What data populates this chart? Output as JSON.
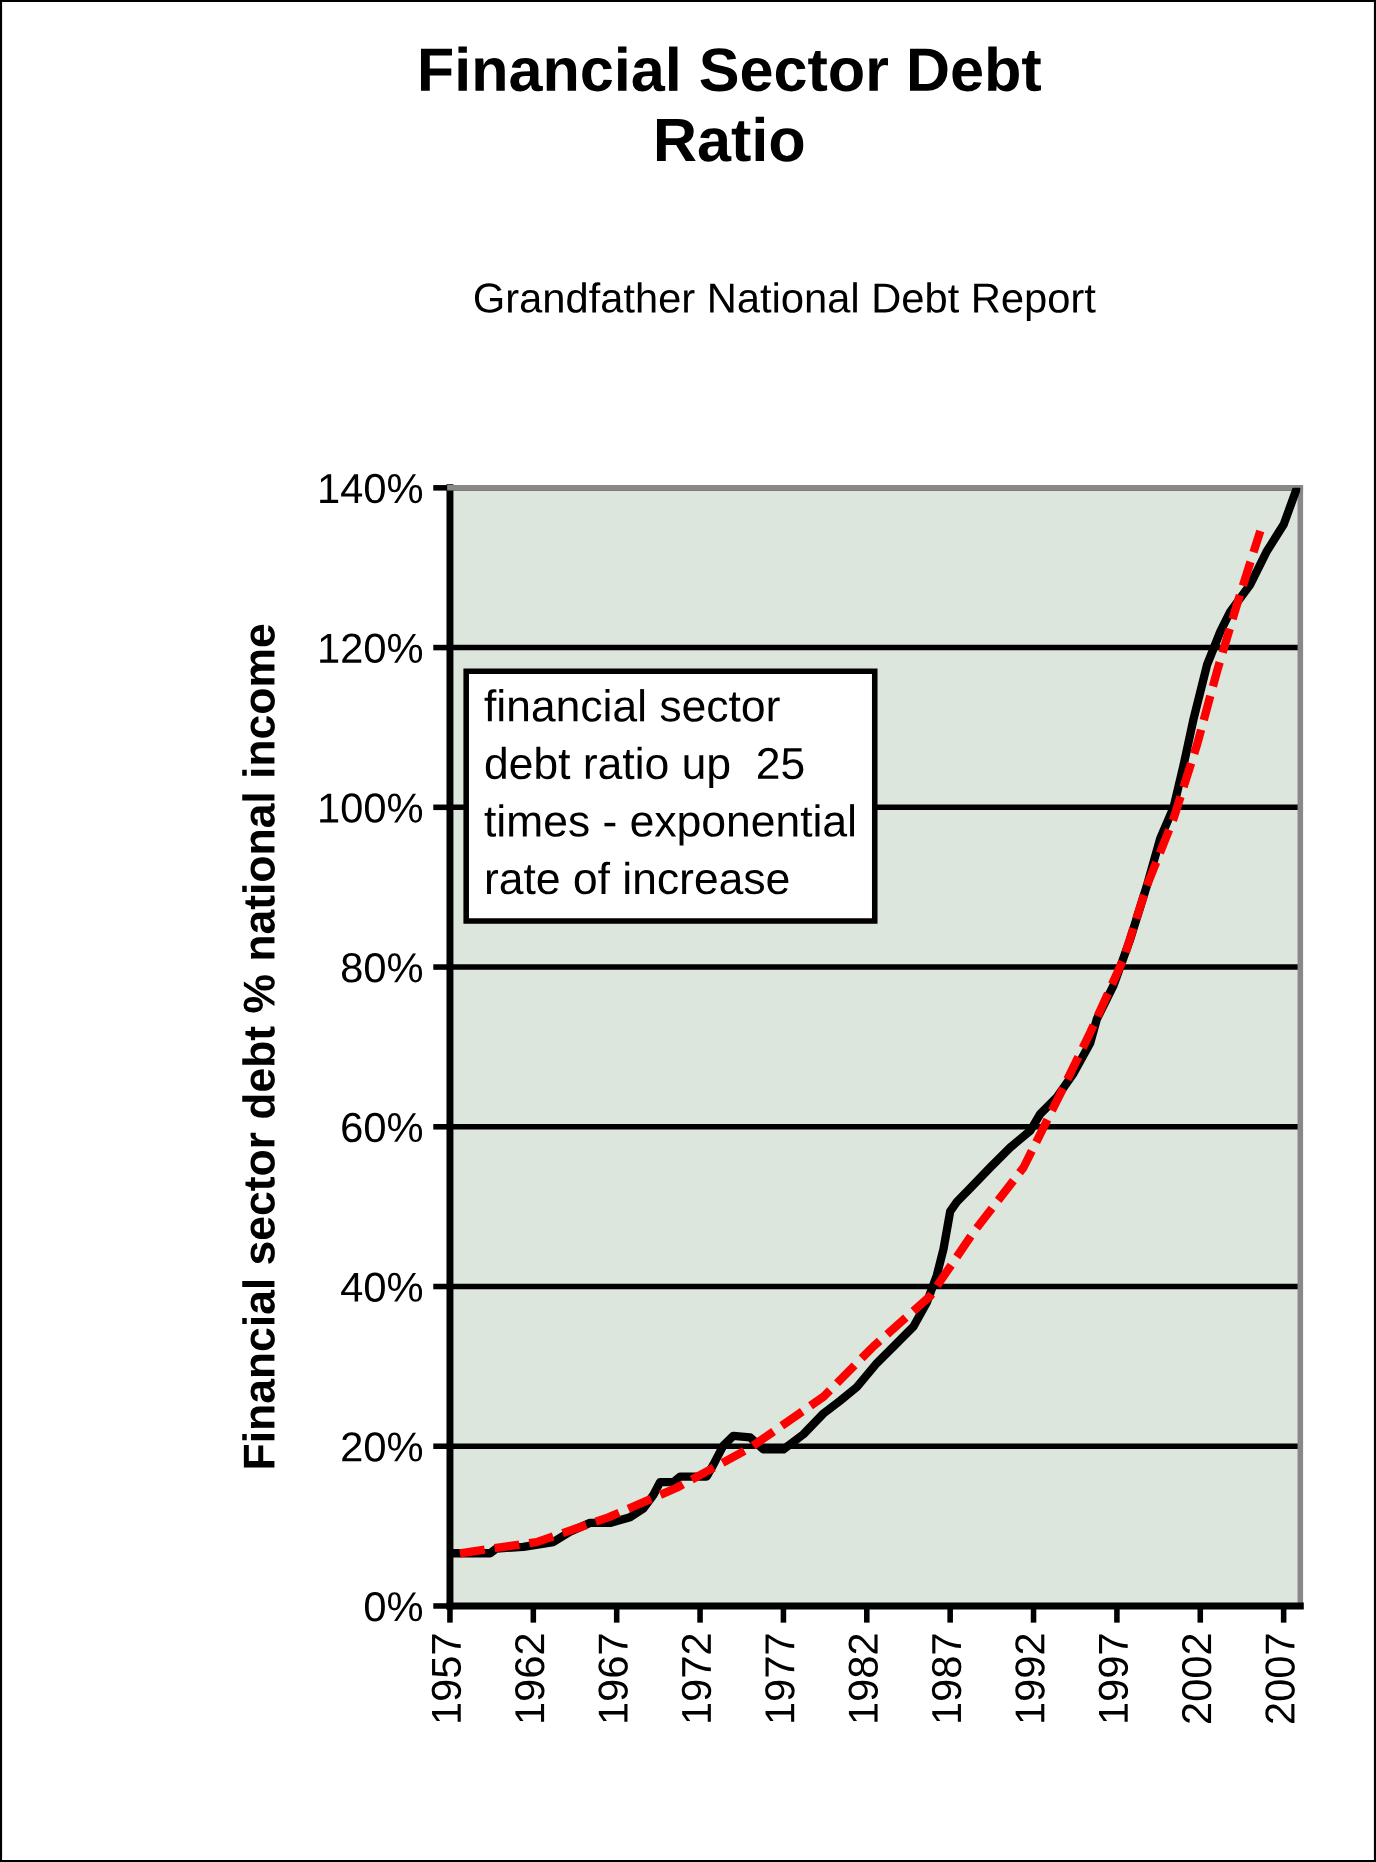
{
  "chart_data": {
    "type": "line",
    "title": "Financial Sector Debt\nRatio",
    "subtitle": "Grandfather National Debt Report",
    "ylabel": "Financial sector debt % national income",
    "annotations": [
      "financial sector\ndebt ratio up  25\ntimes - exponential\nrate of increase"
    ],
    "series": [
      {
        "color": "#000000",
        "line_style": "solid",
        "x": [
          1957.2,
          1959.4,
          1959.8,
          1961.4,
          1963.2,
          1964.2,
          1965.4,
          1966.6,
          1967.8,
          1968.6,
          1969.2,
          1969.6,
          1970.4,
          1970.8,
          1972.4,
          1972.8,
          1973.4,
          1974,
          1975,
          1975.8,
          1977,
          1978.2,
          1979.4,
          1980.4,
          1981.4,
          1982.6,
          1983.8,
          1984.8,
          1985.6,
          1986.2,
          1986.6,
          1987,
          1987.4,
          1988.2,
          1989.4,
          1990.6,
          1991.8,
          1992.4,
          1993.4,
          1994.4,
          1995.4,
          1995.8,
          1996.8,
          1997.8,
          1998.8,
          1999.6,
          2000.4,
          2001,
          2001.6,
          2002.4,
          2003.2,
          2003.8,
          2005,
          2006,
          2007,
          2007.8
        ],
        "values": [
          6.6,
          6.6,
          7.2,
          7.4,
          8.0,
          9.3,
          10.4,
          10.4,
          11.1,
          12.2,
          13.9,
          15.5,
          15.5,
          16.2,
          16.2,
          17.7,
          20.1,
          21.3,
          21.1,
          19.6,
          19.6,
          21.5,
          24.1,
          25.7,
          27.4,
          30.4,
          32.9,
          35.0,
          38.0,
          41.4,
          44.7,
          49.4,
          50.6,
          52.3,
          54.9,
          57.4,
          59.5,
          61.6,
          63.7,
          66.7,
          70.5,
          73.5,
          77.7,
          83.5,
          90.2,
          96.1,
          100,
          105.3,
          111.1,
          117.8,
          122,
          124.5,
          127.9,
          132.1,
          135.4,
          140
        ]
      },
      {
        "color": "#ff0000",
        "line_style": "dashed",
        "x": [
          1957.6,
          1962.2,
          1966.5,
          1970.6,
          1975,
          1979.4,
          1982.4,
          1985.8,
          1988.4,
          1991.4,
          1993.6,
          1995.4,
          1997.4,
          1998.8,
          2000.4,
          2001.8,
          2003,
          2004.2,
          2005.6
        ],
        "values": [
          6.6,
          8.0,
          11.1,
          14.8,
          19.8,
          26.2,
          32.5,
          38.8,
          46.8,
          54.9,
          64.1,
          71.8,
          81,
          90.2,
          98.6,
          107.8,
          117,
          125.4,
          134.6
        ]
      }
    ],
    "xlim": [
      1957,
      2008
    ],
    "xticks": [
      1957,
      1962,
      1967,
      1972,
      1977,
      1982,
      1987,
      1992,
      1997,
      2002,
      2007
    ],
    "ylim": [
      0,
      140
    ],
    "yticks": [
      {
        "value": 0,
        "label": "0%"
      },
      {
        "value": 20,
        "label": "20%"
      },
      {
        "value": 40,
        "label": "40%"
      },
      {
        "value": 60,
        "label": "60%"
      },
      {
        "value": 80,
        "label": "80%"
      },
      {
        "value": 100,
        "label": "100%"
      },
      {
        "value": 120,
        "label": "120%"
      },
      {
        "value": 140,
        "label": "140%"
      }
    ],
    "grid": "y",
    "legend": false
  }
}
